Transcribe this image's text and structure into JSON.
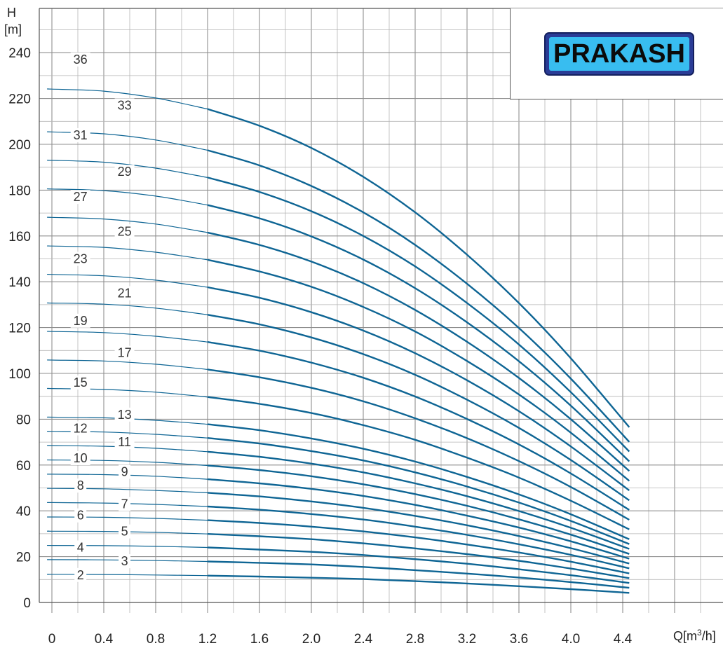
{
  "chart_data": {
    "type": "line",
    "ylabel": "H\n[m]",
    "ylabel_lines": [
      "H",
      "[m]"
    ],
    "xlabel": "Q[m³/h]",
    "xlabel_parts": {
      "prefix": "Q[m",
      "sup": "3",
      "suffix": "/h]"
    },
    "xlim": [
      0,
      5.1
    ],
    "ylim": [
      0,
      242
    ],
    "x_ticks": [
      "0",
      "0.4",
      "0.8",
      "1.2",
      "1.6",
      "2.0",
      "2.4",
      "2.8",
      "3.2",
      "3.6",
      "4.0",
      "4.4"
    ],
    "x_tick_values": [
      0,
      0.4,
      0.8,
      1.2,
      1.6,
      2.0,
      2.4,
      2.8,
      3.2,
      3.6,
      4.0,
      4.4
    ],
    "y_ticks": [
      "0",
      "20",
      "40",
      "60",
      "80",
      "100",
      "120",
      "140",
      "160",
      "180",
      "200",
      "220",
      "240"
    ],
    "y_tick_values": [
      0,
      20,
      40,
      60,
      80,
      100,
      120,
      140,
      160,
      180,
      200,
      220,
      240
    ],
    "grid": true,
    "line_color": "#0e6594",
    "x": [
      0,
      0.4,
      0.8,
      1.2,
      1.6,
      2.0,
      2.4,
      2.8,
      3.2,
      3.6,
      4.0,
      4.45
    ],
    "series": [
      {
        "name": "2",
        "values": [
          12.3,
          12.2,
          12.0,
          11.7,
          11.3,
          10.8,
          10.2,
          9.3,
          8.3,
          7.1,
          5.8,
          4.2
        ]
      },
      {
        "name": "3",
        "values": [
          18.7,
          18.6,
          18.3,
          17.9,
          17.3,
          16.6,
          15.5,
          14.1,
          12.6,
          10.9,
          8.9,
          6.4
        ]
      },
      {
        "name": "4",
        "values": [
          24.9,
          24.8,
          24.5,
          24.0,
          23.1,
          22.1,
          20.7,
          18.9,
          16.9,
          14.5,
          11.9,
          8.5
        ]
      },
      {
        "name": "5",
        "values": [
          31.1,
          31.0,
          30.6,
          29.9,
          28.9,
          27.6,
          25.8,
          23.6,
          21.1,
          18.2,
          14.8,
          10.6
        ]
      },
      {
        "name": "6",
        "values": [
          37.3,
          37.2,
          36.7,
          35.9,
          34.7,
          33.1,
          31.0,
          28.4,
          25.3,
          21.8,
          17.8,
          12.7
        ]
      },
      {
        "name": "7",
        "values": [
          43.6,
          43.4,
          42.8,
          41.9,
          40.5,
          38.6,
          36.2,
          33.1,
          29.5,
          25.4,
          20.8,
          14.9
        ]
      },
      {
        "name": "8",
        "values": [
          49.8,
          49.6,
          48.9,
          47.9,
          46.3,
          44.1,
          41.3,
          37.8,
          33.7,
          29.0,
          23.7,
          17.0
        ]
      },
      {
        "name": "9",
        "values": [
          56.0,
          55.8,
          55.1,
          53.8,
          52.0,
          49.6,
          46.5,
          42.6,
          37.9,
          32.7,
          26.7,
          19.1
        ]
      },
      {
        "name": "10",
        "values": [
          62.2,
          62.0,
          61.2,
          59.8,
          57.8,
          55.1,
          51.6,
          47.3,
          42.2,
          36.3,
          29.6,
          21.2
        ]
      },
      {
        "name": "11",
        "values": [
          68.5,
          68.2,
          67.3,
          65.8,
          63.6,
          60.6,
          56.8,
          52.0,
          46.4,
          39.9,
          32.6,
          23.4
        ]
      },
      {
        "name": "12",
        "values": [
          74.7,
          74.4,
          73.4,
          71.8,
          69.4,
          66.1,
          62.0,
          56.8,
          50.6,
          43.6,
          35.6,
          25.5
        ]
      },
      {
        "name": "13",
        "values": [
          80.9,
          80.6,
          79.5,
          77.8,
          75.2,
          71.6,
          67.1,
          61.5,
          54.8,
          47.2,
          38.5,
          27.6
        ]
      },
      {
        "name": "15",
        "values": [
          93.4,
          93.0,
          91.8,
          89.7,
          86.7,
          82.7,
          77.4,
          71.0,
          63.2,
          54.5,
          44.4,
          31.9
        ]
      },
      {
        "name": "17",
        "values": [
          105.8,
          105.4,
          104.0,
          101.7,
          98.3,
          93.7,
          87.8,
          80.4,
          71.7,
          61.7,
          50.4,
          36.1
        ]
      },
      {
        "name": "19",
        "values": [
          118.3,
          117.8,
          116.2,
          113.7,
          109.9,
          104.7,
          98.1,
          89.9,
          80.1,
          69.0,
          56.3,
          40.4
        ]
      },
      {
        "name": "21",
        "values": [
          130.7,
          130.2,
          128.5,
          125.6,
          121.4,
          115.7,
          108.4,
          99.4,
          88.5,
          76.2,
          62.2,
          44.6
        ]
      },
      {
        "name": "23",
        "values": [
          143.2,
          142.6,
          140.7,
          137.6,
          133.0,
          126.7,
          118.7,
          108.8,
          97.0,
          83.5,
          68.1,
          48.9
        ]
      },
      {
        "name": "25",
        "values": [
          155.6,
          155.0,
          152.9,
          149.6,
          144.5,
          137.8,
          129.0,
          118.3,
          105.4,
          90.8,
          74.1,
          53.1
        ]
      },
      {
        "name": "27",
        "values": [
          168.1,
          167.4,
          165.2,
          161.5,
          156.1,
          148.8,
          139.4,
          127.7,
          113.8,
          98.0,
          80.0,
          57.4
        ]
      },
      {
        "name": "29",
        "values": [
          180.5,
          179.8,
          177.4,
          173.5,
          167.7,
          159.8,
          149.7,
          137.2,
          122.3,
          105.3,
          85.9,
          61.6
        ]
      },
      {
        "name": "31",
        "values": [
          193.0,
          192.2,
          189.6,
          185.5,
          179.2,
          170.8,
          160.0,
          146.7,
          130.7,
          112.6,
          91.8,
          65.9
        ]
      },
      {
        "name": "33",
        "values": [
          205.4,
          204.6,
          201.9,
          197.4,
          190.8,
          181.8,
          170.3,
          156.1,
          139.1,
          119.8,
          97.7,
          70.1
        ]
      },
      {
        "name": "36",
        "values": [
          224.1,
          223.2,
          220.2,
          215.4,
          208.1,
          198.4,
          185.8,
          170.3,
          151.8,
          130.7,
          106.6,
          76.5
        ]
      }
    ],
    "curve_labels": [
      {
        "text": "36",
        "x": 0.22,
        "y": 237
      },
      {
        "text": "33",
        "x": 0.56,
        "y": 217
      },
      {
        "text": "31",
        "x": 0.22,
        "y": 204
      },
      {
        "text": "29",
        "x": 0.56,
        "y": 188
      },
      {
        "text": "27",
        "x": 0.22,
        "y": 177
      },
      {
        "text": "25",
        "x": 0.56,
        "y": 162
      },
      {
        "text": "23",
        "x": 0.22,
        "y": 150
      },
      {
        "text": "21",
        "x": 0.56,
        "y": 135
      },
      {
        "text": "19",
        "x": 0.22,
        "y": 123
      },
      {
        "text": "17",
        "x": 0.56,
        "y": 109
      },
      {
        "text": "15",
        "x": 0.22,
        "y": 96
      },
      {
        "text": "13",
        "x": 0.56,
        "y": 82
      },
      {
        "text": "12",
        "x": 0.22,
        "y": 76
      },
      {
        "text": "11",
        "x": 0.56,
        "y": 70
      },
      {
        "text": "10",
        "x": 0.22,
        "y": 63
      },
      {
        "text": "9",
        "x": 0.56,
        "y": 57
      },
      {
        "text": "8",
        "x": 0.22,
        "y": 51
      },
      {
        "text": "7",
        "x": 0.56,
        "y": 43
      },
      {
        "text": "6",
        "x": 0.22,
        "y": 38
      },
      {
        "text": "5",
        "x": 0.56,
        "y": 31
      },
      {
        "text": "4",
        "x": 0.22,
        "y": 24
      },
      {
        "text": "3",
        "x": 0.56,
        "y": 18
      },
      {
        "text": "2",
        "x": 0.22,
        "y": 12
      }
    ]
  },
  "logo": {
    "text": "PRAKASH",
    "colors": {
      "frame": "#2a3c96",
      "fill": "#38bdf0",
      "text": "#0b0b0b"
    }
  }
}
